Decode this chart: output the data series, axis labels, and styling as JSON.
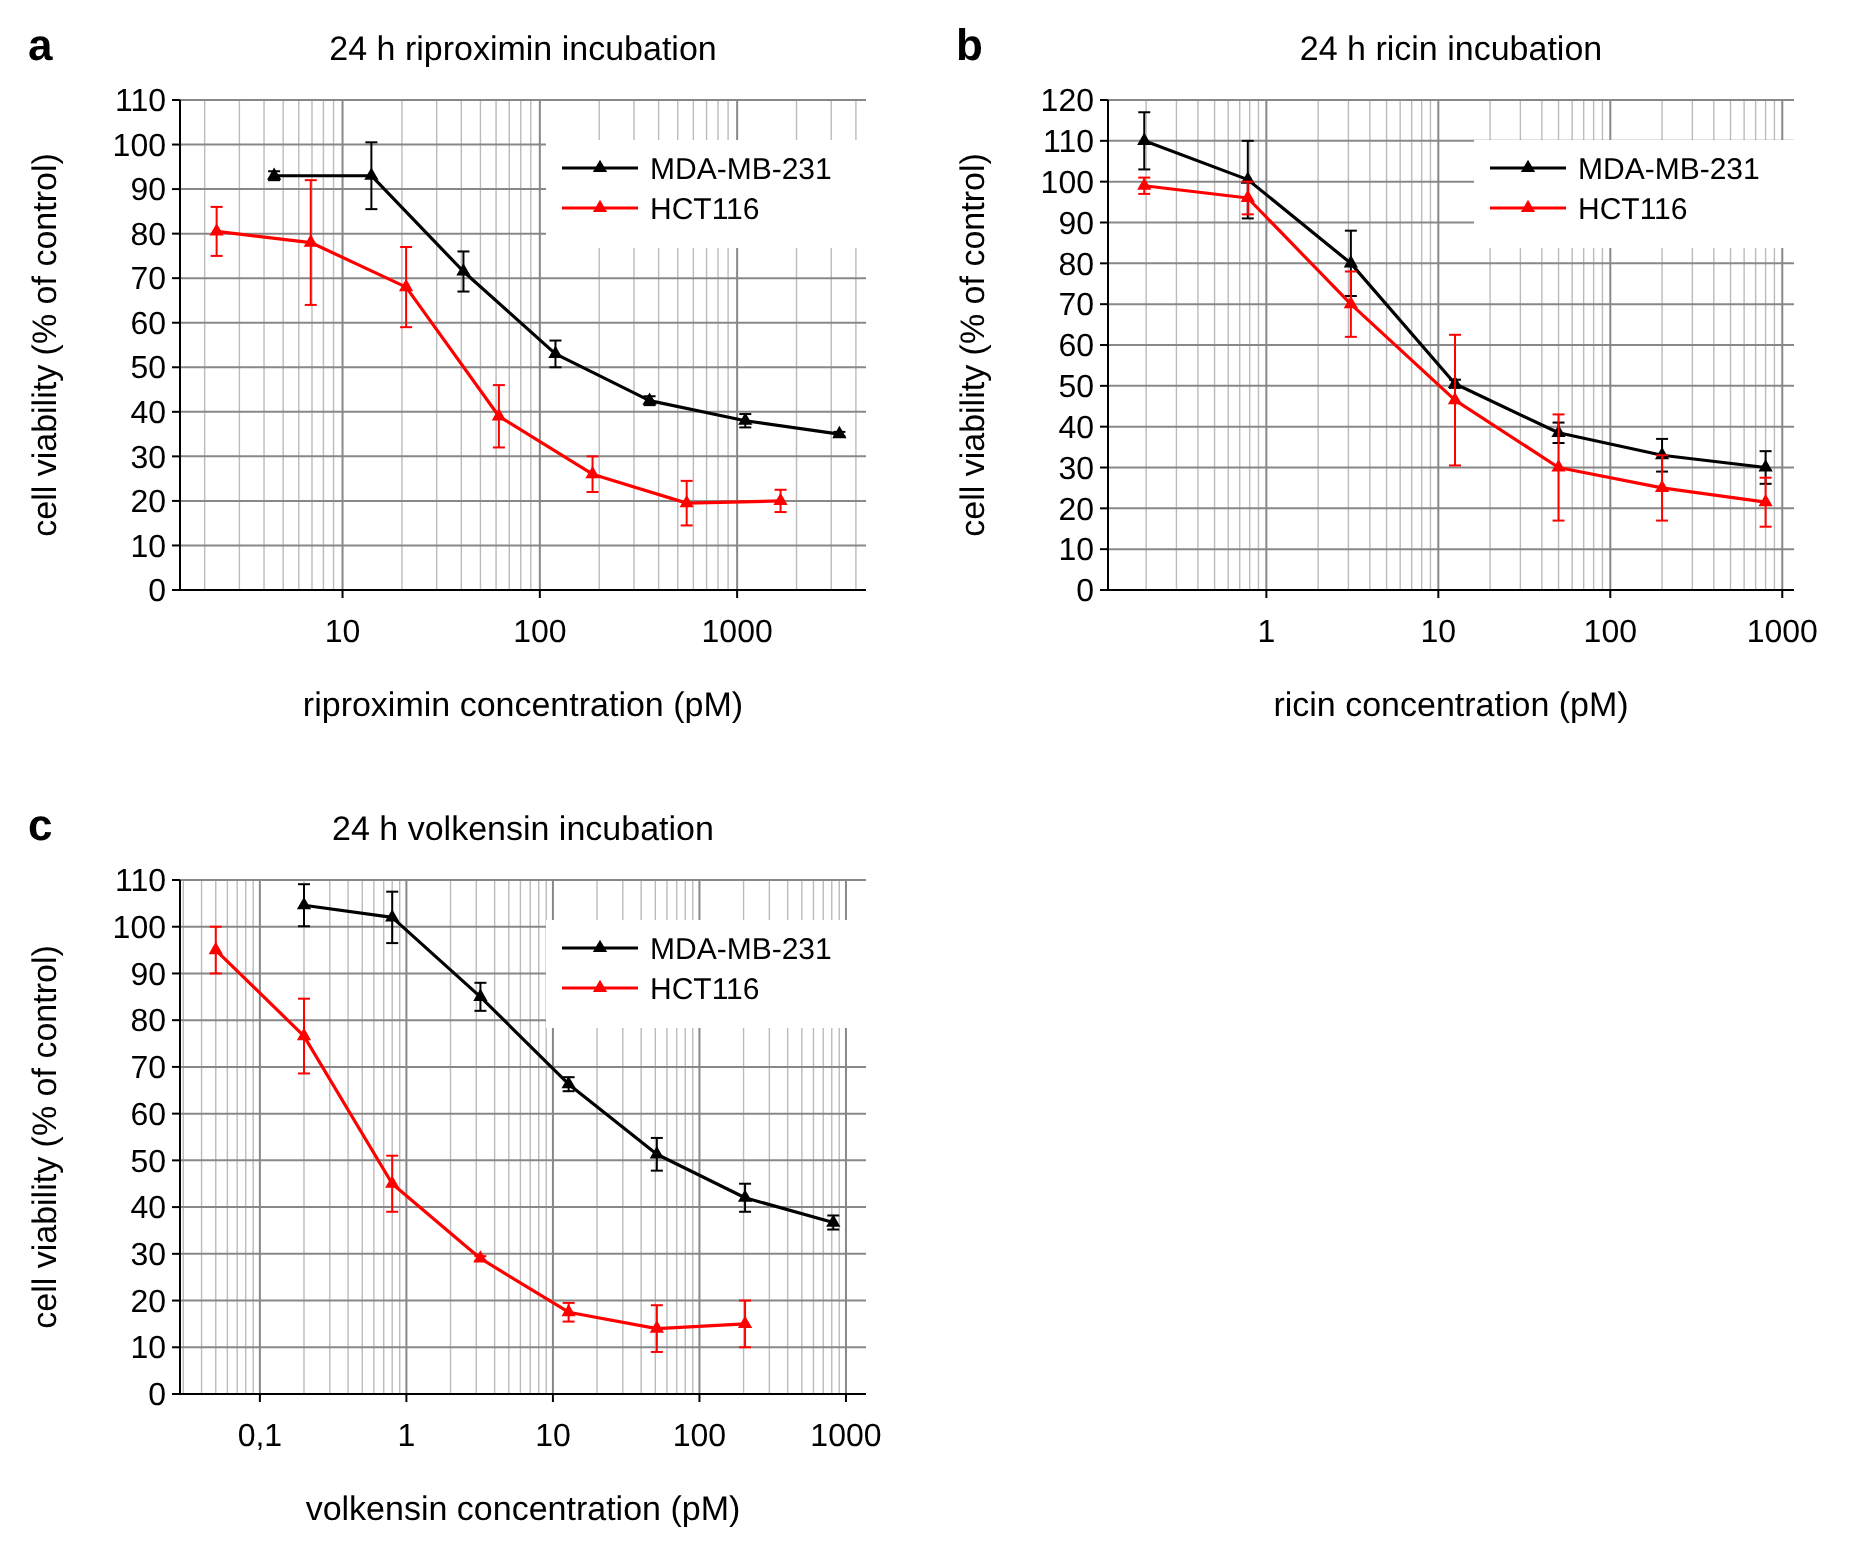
{
  "chart_data": [
    {
      "type": "line",
      "title": "24 h riproximin incubation",
      "xlabel": "riproximin concentration (pM)",
      "ylabel": "cell viability (% of control)",
      "annotations": [
        "a"
      ],
      "log": "x",
      "grid": true,
      "legend": "top right",
      "marker": "triangle",
      "line_style": "solid",
      "xlim": [
        1.5,
        4500
      ],
      "xticks": [
        10,
        100,
        1000
      ],
      "ylim": [
        0,
        110
      ],
      "yticks": [
        0,
        10,
        20,
        30,
        40,
        50,
        60,
        70,
        80,
        90,
        100,
        110
      ],
      "series": [
        {
          "name": "MDA-MB-231",
          "color": "#000000",
          "x": [
            4.5,
            14,
            41,
            120,
            360,
            1100,
            3300
          ],
          "values": [
            93,
            93,
            71.5,
            53,
            42.5,
            38,
            35
          ],
          "errors": [
            1,
            7.5,
            4.5,
            3,
            1,
            1.5,
            0.5
          ]
        },
        {
          "name": "HCT116",
          "color": "#ff0000",
          "x": [
            2.3,
            6.9,
            21,
            62,
            185,
            555,
            1660
          ],
          "values": [
            80.5,
            78,
            68,
            39,
            26,
            19.5,
            20
          ],
          "errors": [
            5.5,
            14,
            9,
            7,
            4,
            5,
            2.5
          ]
        }
      ]
    },
    {
      "type": "line",
      "title": "24 h ricin incubation",
      "xlabel": "ricin concentration (pM)",
      "ylabel": "cell viability (% of control)",
      "annotations": [
        "b"
      ],
      "log": "x",
      "grid": true,
      "legend": "top right",
      "marker": "triangle",
      "line_style": "solid",
      "xlim": [
        0.12,
        1170
      ],
      "xticks": [
        1,
        10,
        100,
        1000
      ],
      "ylim": [
        0,
        120
      ],
      "yticks": [
        0,
        10,
        20,
        30,
        40,
        50,
        60,
        70,
        80,
        90,
        100,
        110,
        120
      ],
      "series": [
        {
          "name": "MDA-MB-231",
          "color": "#000000",
          "x": [
            0.195,
            0.78,
            3.1,
            12.5,
            50,
            200,
            800
          ],
          "values": [
            110,
            100.5,
            80,
            50.5,
            38.5,
            33,
            30
          ],
          "errors": [
            7,
            9.5,
            8,
            1,
            2.5,
            4,
            4
          ]
        },
        {
          "name": "HCT116",
          "color": "#ff0000",
          "x": [
            0.195,
            0.78,
            3.1,
            12.5,
            50,
            200,
            800
          ],
          "values": [
            99,
            96,
            70,
            46.5,
            30,
            25,
            21.5
          ],
          "errors": [
            2,
            4,
            8,
            16,
            13,
            8,
            6
          ]
        }
      ]
    },
    {
      "type": "line",
      "title": "24 h volkensin incubation",
      "xlabel": "volkensin concentration (pM)",
      "ylabel": "cell viability (% of control)",
      "annotations": [
        "c"
      ],
      "log": "x",
      "grid": true,
      "legend": "top right",
      "marker": "triangle",
      "line_style": "solid",
      "xlim": [
        0.0285,
        1370
      ],
      "xticks": [
        {
          "value": 0.1,
          "label": "0,1"
        },
        1,
        10,
        100,
        1000
      ],
      "ylim": [
        0,
        110
      ],
      "yticks": [
        0,
        10,
        20,
        30,
        40,
        50,
        60,
        70,
        80,
        90,
        100,
        110
      ],
      "series": [
        {
          "name": "MDA-MB-231",
          "color": "#000000",
          "x": [
            0.2,
            0.8,
            3.2,
            12.8,
            51.2,
            204.8,
            819.2
          ],
          "values": [
            104.6,
            102,
            85,
            66.3,
            51.3,
            42,
            36.7
          ],
          "errors": [
            4.5,
            5.5,
            3,
            1.5,
            3.5,
            3,
            1.5
          ]
        },
        {
          "name": "HCT116",
          "color": "#ff0000",
          "x": [
            0.05,
            0.2,
            0.8,
            3.2,
            12.8,
            51.2,
            204.8
          ],
          "values": [
            95,
            76.6,
            45,
            29,
            17.5,
            14,
            15
          ],
          "errors": [
            5,
            8,
            6,
            0.5,
            2,
            5,
            5
          ]
        }
      ]
    }
  ]
}
